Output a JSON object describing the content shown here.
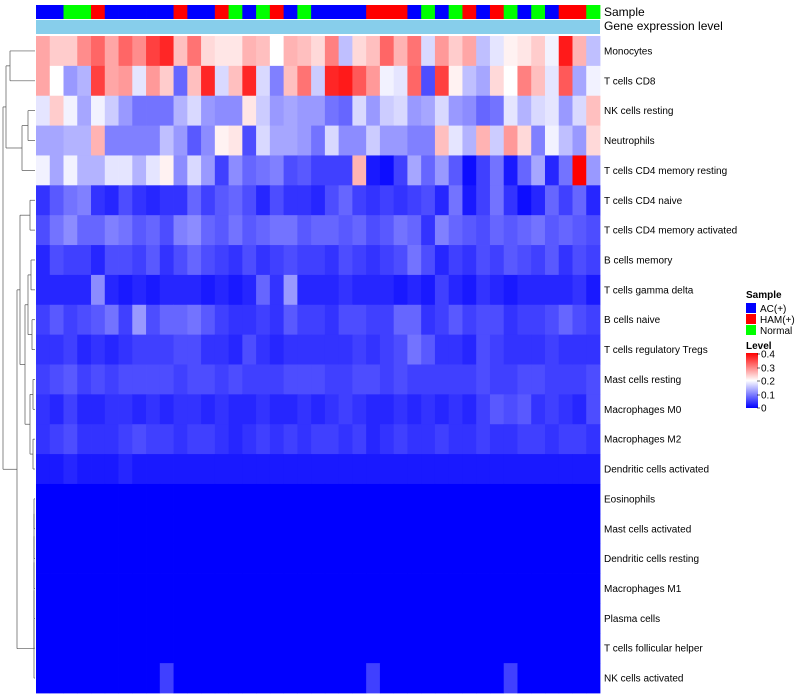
{
  "chart_data": {
    "type": "heatmap",
    "annotation_tracks": [
      "Sample",
      "Gene expression level"
    ],
    "sample_groups": [
      "AC(+)",
      "HAM(+)",
      "Normal"
    ],
    "sample_annotation": [
      "AC(+)",
      "AC(+)",
      "Normal",
      "Normal",
      "HAM(+)",
      "AC(+)",
      "AC(+)",
      "AC(+)",
      "AC(+)",
      "AC(+)",
      "HAM(+)",
      "AC(+)",
      "AC(+)",
      "HAM(+)",
      "Normal",
      "AC(+)",
      "Normal",
      "HAM(+)",
      "AC(+)",
      "Normal",
      "AC(+)",
      "AC(+)",
      "AC(+)",
      "AC(+)",
      "HAM(+)",
      "HAM(+)",
      "HAM(+)",
      "AC(+)",
      "Normal",
      "AC(+)",
      "Normal",
      "HAM(+)",
      "AC(+)",
      "HAM(+)",
      "Normal",
      "AC(+)",
      "Normal",
      "AC(+)",
      "HAM(+)",
      "HAM(+)",
      "Normal"
    ],
    "rows": [
      {
        "name": "Monocytes",
        "values": [
          0.27,
          0.24,
          0.24,
          0.29,
          0.32,
          0.27,
          0.32,
          0.29,
          0.35,
          0.37,
          0.25,
          0.31,
          0.23,
          0.22,
          0.22,
          0.26,
          0.25,
          0.2,
          0.26,
          0.25,
          0.23,
          0.3,
          0.15,
          0.23,
          0.25,
          0.32,
          0.26,
          0.31,
          0.17,
          0.28,
          0.24,
          0.27,
          0.15,
          0.18,
          0.21,
          0.22,
          0.24,
          0.19,
          0.38,
          0.26,
          0.15
        ]
      },
      {
        "name": "T cells CD8",
        "values": [
          0.27,
          0.2,
          0.12,
          0.14,
          0.35,
          0.27,
          0.28,
          0.18,
          0.28,
          0.24,
          0.08,
          0.25,
          0.37,
          0.17,
          0.25,
          0.37,
          0.17,
          0.1,
          0.25,
          0.31,
          0.16,
          0.37,
          0.38,
          0.33,
          0.28,
          0.19,
          0.18,
          0.32,
          0.06,
          0.35,
          0.21,
          0.15,
          0.13,
          0.23,
          0.2,
          0.3,
          0.25,
          0.18,
          0.33,
          0.13,
          0.19
        ]
      },
      {
        "name": "NK cells resting",
        "values": [
          0.18,
          0.24,
          0.19,
          0.13,
          0.19,
          0.16,
          0.12,
          0.09,
          0.09,
          0.09,
          0.14,
          0.17,
          0.12,
          0.11,
          0.11,
          0.22,
          0.16,
          0.12,
          0.13,
          0.12,
          0.12,
          0.09,
          0.08,
          0.17,
          0.12,
          0.16,
          0.17,
          0.12,
          0.13,
          0.17,
          0.12,
          0.11,
          0.08,
          0.09,
          0.18,
          0.14,
          0.17,
          0.18,
          0.12,
          0.17,
          0.25
        ]
      },
      {
        "name": "Neutrophils",
        "values": [
          0.13,
          0.13,
          0.14,
          0.14,
          0.26,
          0.1,
          0.1,
          0.1,
          0.1,
          0.15,
          0.12,
          0.07,
          0.11,
          0.21,
          0.22,
          0.06,
          0.17,
          0.13,
          0.13,
          0.12,
          0.09,
          0.17,
          0.11,
          0.11,
          0.16,
          0.12,
          0.12,
          0.1,
          0.1,
          0.25,
          0.18,
          0.14,
          0.26,
          0.16,
          0.28,
          0.23,
          0.1,
          0.19,
          0.15,
          0.12,
          0.23
        ]
      },
      {
        "name": "T cells CD4 memory resting",
        "values": [
          0.19,
          0.13,
          0.19,
          0.14,
          0.14,
          0.18,
          0.18,
          0.14,
          0.18,
          0.21,
          0.11,
          0.17,
          0.12,
          0.05,
          0.11,
          0.08,
          0.09,
          0.1,
          0.06,
          0.07,
          0.05,
          0.05,
          0.05,
          0.26,
          0.02,
          0.01,
          0.05,
          0.13,
          0.08,
          0.12,
          0.07,
          0.01,
          0.05,
          0.09,
          0.02,
          0.08,
          0.13,
          0.03,
          0.09,
          0.42,
          0.12
        ]
      },
      {
        "name": "T cells CD4 naive",
        "values": [
          0.04,
          0.07,
          0.09,
          0.1,
          0.04,
          0.03,
          0.06,
          0.04,
          0.03,
          0.04,
          0.04,
          0.08,
          0.05,
          0.07,
          0.08,
          0.06,
          0.03,
          0.06,
          0.04,
          0.04,
          0.03,
          0.06,
          0.08,
          0.05,
          0.04,
          0.05,
          0.04,
          0.05,
          0.06,
          0.03,
          0.09,
          0.02,
          0.05,
          0.09,
          0.04,
          0.01,
          0.03,
          0.08,
          0.05,
          0.08,
          0.03
        ]
      },
      {
        "name": "T cells CD4 memory activated",
        "values": [
          0.06,
          0.09,
          0.11,
          0.08,
          0.08,
          0.1,
          0.09,
          0.07,
          0.08,
          0.06,
          0.1,
          0.11,
          0.08,
          0.07,
          0.09,
          0.07,
          0.08,
          0.09,
          0.09,
          0.07,
          0.08,
          0.08,
          0.07,
          0.08,
          0.06,
          0.07,
          0.09,
          0.08,
          0.04,
          0.1,
          0.08,
          0.07,
          0.06,
          0.08,
          0.07,
          0.08,
          0.09,
          0.07,
          0.08,
          0.07,
          0.06
        ]
      },
      {
        "name": "B cells memory",
        "values": [
          0.03,
          0.06,
          0.05,
          0.05,
          0.03,
          0.06,
          0.06,
          0.05,
          0.07,
          0.04,
          0.06,
          0.08,
          0.06,
          0.05,
          0.04,
          0.06,
          0.04,
          0.05,
          0.06,
          0.05,
          0.05,
          0.04,
          0.06,
          0.05,
          0.04,
          0.05,
          0.06,
          0.09,
          0.06,
          0.03,
          0.05,
          0.04,
          0.06,
          0.05,
          0.07,
          0.06,
          0.05,
          0.07,
          0.04,
          0.06,
          0.05
        ]
      },
      {
        "name": "T cells gamma delta",
        "values": [
          0.03,
          0.03,
          0.03,
          0.03,
          0.11,
          0.03,
          0.02,
          0.03,
          0.02,
          0.03,
          0.03,
          0.03,
          0.02,
          0.03,
          0.02,
          0.03,
          0.08,
          0.04,
          0.12,
          0.03,
          0.03,
          0.03,
          0.04,
          0.03,
          0.03,
          0.03,
          0.02,
          0.03,
          0.02,
          0.05,
          0.03,
          0.02,
          0.04,
          0.03,
          0.02,
          0.03,
          0.03,
          0.03,
          0.03,
          0.04,
          0.02
        ]
      },
      {
        "name": "B cells naive",
        "values": [
          0.05,
          0.07,
          0.05,
          0.06,
          0.07,
          0.09,
          0.05,
          0.12,
          0.06,
          0.08,
          0.08,
          0.09,
          0.07,
          0.05,
          0.04,
          0.04,
          0.05,
          0.04,
          0.07,
          0.05,
          0.05,
          0.04,
          0.06,
          0.06,
          0.05,
          0.05,
          0.08,
          0.08,
          0.04,
          0.05,
          0.07,
          0.05,
          0.06,
          0.06,
          0.04,
          0.05,
          0.05,
          0.06,
          0.08,
          0.06,
          0.05
        ]
      },
      {
        "name": "T cells regulatory  Tregs",
        "values": [
          0.04,
          0.04,
          0.05,
          0.03,
          0.04,
          0.03,
          0.04,
          0.05,
          0.05,
          0.05,
          0.06,
          0.06,
          0.04,
          0.04,
          0.03,
          0.06,
          0.04,
          0.03,
          0.04,
          0.04,
          0.04,
          0.04,
          0.04,
          0.05,
          0.04,
          0.05,
          0.06,
          0.09,
          0.07,
          0.04,
          0.04,
          0.03,
          0.06,
          0.05,
          0.04,
          0.04,
          0.04,
          0.05,
          0.04,
          0.04,
          0.04
        ]
      },
      {
        "name": "Mast cells resting",
        "values": [
          0.05,
          0.06,
          0.07,
          0.05,
          0.06,
          0.05,
          0.06,
          0.06,
          0.06,
          0.06,
          0.05,
          0.06,
          0.06,
          0.05,
          0.06,
          0.05,
          0.05,
          0.05,
          0.06,
          0.06,
          0.06,
          0.05,
          0.05,
          0.06,
          0.06,
          0.05,
          0.06,
          0.05,
          0.05,
          0.05,
          0.05,
          0.05,
          0.06,
          0.05,
          0.05,
          0.06,
          0.06,
          0.05,
          0.05,
          0.05,
          0.06
        ]
      },
      {
        "name": "Macrophages M0",
        "values": [
          0.04,
          0.03,
          0.05,
          0.03,
          0.03,
          0.04,
          0.04,
          0.03,
          0.04,
          0.03,
          0.04,
          0.04,
          0.03,
          0.04,
          0.03,
          0.03,
          0.04,
          0.03,
          0.03,
          0.04,
          0.03,
          0.04,
          0.05,
          0.04,
          0.03,
          0.03,
          0.04,
          0.03,
          0.04,
          0.03,
          0.04,
          0.03,
          0.05,
          0.07,
          0.06,
          0.07,
          0.04,
          0.05,
          0.04,
          0.03,
          0.06
        ]
      },
      {
        "name": "Macrophages M2",
        "values": [
          0.04,
          0.05,
          0.06,
          0.04,
          0.04,
          0.04,
          0.05,
          0.06,
          0.05,
          0.05,
          0.04,
          0.05,
          0.05,
          0.04,
          0.03,
          0.04,
          0.05,
          0.04,
          0.05,
          0.04,
          0.05,
          0.05,
          0.04,
          0.05,
          0.03,
          0.04,
          0.05,
          0.04,
          0.04,
          0.05,
          0.04,
          0.04,
          0.05,
          0.04,
          0.04,
          0.05,
          0.05,
          0.04,
          0.05,
          0.05,
          0.04
        ]
      },
      {
        "name": "Dendritic cells activated",
        "values": [
          0.02,
          0.02,
          0.03,
          0.02,
          0.02,
          0.02,
          0.03,
          0.02,
          0.02,
          0.02,
          0.02,
          0.02,
          0.02,
          0.02,
          0.02,
          0.02,
          0.02,
          0.02,
          0.02,
          0.02,
          0.02,
          0.02,
          0.02,
          0.02,
          0.02,
          0.02,
          0.02,
          0.02,
          0.02,
          0.02,
          0.02,
          0.02,
          0.02,
          0.02,
          0.02,
          0.02,
          0.02,
          0.02,
          0.02,
          0.02,
          0.02
        ]
      },
      {
        "name": "Eosinophils",
        "values": [
          0,
          0,
          0,
          0,
          0,
          0,
          0,
          0,
          0,
          0,
          0,
          0,
          0,
          0,
          0,
          0,
          0,
          0,
          0,
          0,
          0,
          0,
          0,
          0,
          0,
          0,
          0,
          0,
          0,
          0,
          0,
          0,
          0,
          0,
          0,
          0,
          0,
          0,
          0,
          0,
          0
        ]
      },
      {
        "name": "Mast cells activated",
        "values": [
          0,
          0,
          0,
          0,
          0,
          0,
          0,
          0,
          0,
          0,
          0,
          0,
          0,
          0,
          0,
          0,
          0,
          0,
          0,
          0,
          0,
          0,
          0,
          0,
          0,
          0,
          0,
          0,
          0,
          0,
          0,
          0,
          0,
          0,
          0,
          0,
          0,
          0,
          0,
          0,
          0
        ]
      },
      {
        "name": "Dendritic cells resting",
        "values": [
          0,
          0,
          0,
          0,
          0,
          0,
          0,
          0,
          0,
          0,
          0,
          0,
          0,
          0,
          0,
          0,
          0,
          0,
          0,
          0,
          0,
          0,
          0,
          0,
          0,
          0,
          0,
          0,
          0,
          0,
          0,
          0,
          0,
          0,
          0,
          0,
          0,
          0,
          0,
          0,
          0
        ]
      },
      {
        "name": "Macrophages M1",
        "values": [
          0,
          0,
          0,
          0,
          0,
          0,
          0,
          0,
          0,
          0,
          0,
          0,
          0,
          0,
          0,
          0,
          0,
          0,
          0,
          0,
          0,
          0,
          0,
          0,
          0,
          0,
          0,
          0,
          0,
          0,
          0,
          0,
          0,
          0,
          0,
          0,
          0,
          0,
          0,
          0,
          0
        ]
      },
      {
        "name": "Plasma cells",
        "values": [
          0,
          0,
          0,
          0,
          0,
          0,
          0,
          0,
          0,
          0,
          0,
          0,
          0,
          0,
          0,
          0,
          0,
          0,
          0,
          0,
          0,
          0,
          0,
          0,
          0,
          0,
          0,
          0,
          0,
          0,
          0,
          0,
          0,
          0,
          0,
          0,
          0,
          0,
          0,
          0,
          0
        ]
      },
      {
        "name": "T cells follicular helper",
        "values": [
          0,
          0,
          0,
          0,
          0,
          0,
          0,
          0,
          0,
          0,
          0,
          0,
          0,
          0,
          0,
          0,
          0,
          0,
          0,
          0,
          0,
          0,
          0,
          0,
          0,
          0,
          0,
          0,
          0,
          0,
          0,
          0,
          0,
          0,
          0,
          0,
          0,
          0,
          0,
          0,
          0
        ]
      },
      {
        "name": "NK cells activated",
        "values": [
          0,
          0,
          0,
          0,
          0,
          0,
          0,
          0,
          0,
          0.05,
          0,
          0,
          0,
          0,
          0,
          0,
          0,
          0,
          0,
          0,
          0,
          0,
          0,
          0,
          0.05,
          0,
          0,
          0,
          0,
          0,
          0,
          0,
          0,
          0,
          0.05,
          0,
          0,
          0,
          0,
          0,
          0
        ]
      }
    ],
    "legend": {
      "sample_title": "Sample",
      "sample_entries": [
        {
          "label": "AC(+)",
          "color": "#0000ff"
        },
        {
          "label": "HAM(+)",
          "color": "#ff0000"
        },
        {
          "label": "Normal",
          "color": "#00ff00"
        }
      ],
      "level_title": "Level",
      "level_ticks": [
        "0.4",
        "0.3",
        "0.2",
        "0.1",
        "0"
      ],
      "level_range": [
        0,
        0.4
      ],
      "expression_color": "#87ceeb"
    },
    "colors": {
      "low": "#0000ff",
      "mid": "#ffffff",
      "high": "#ff0000"
    }
  }
}
